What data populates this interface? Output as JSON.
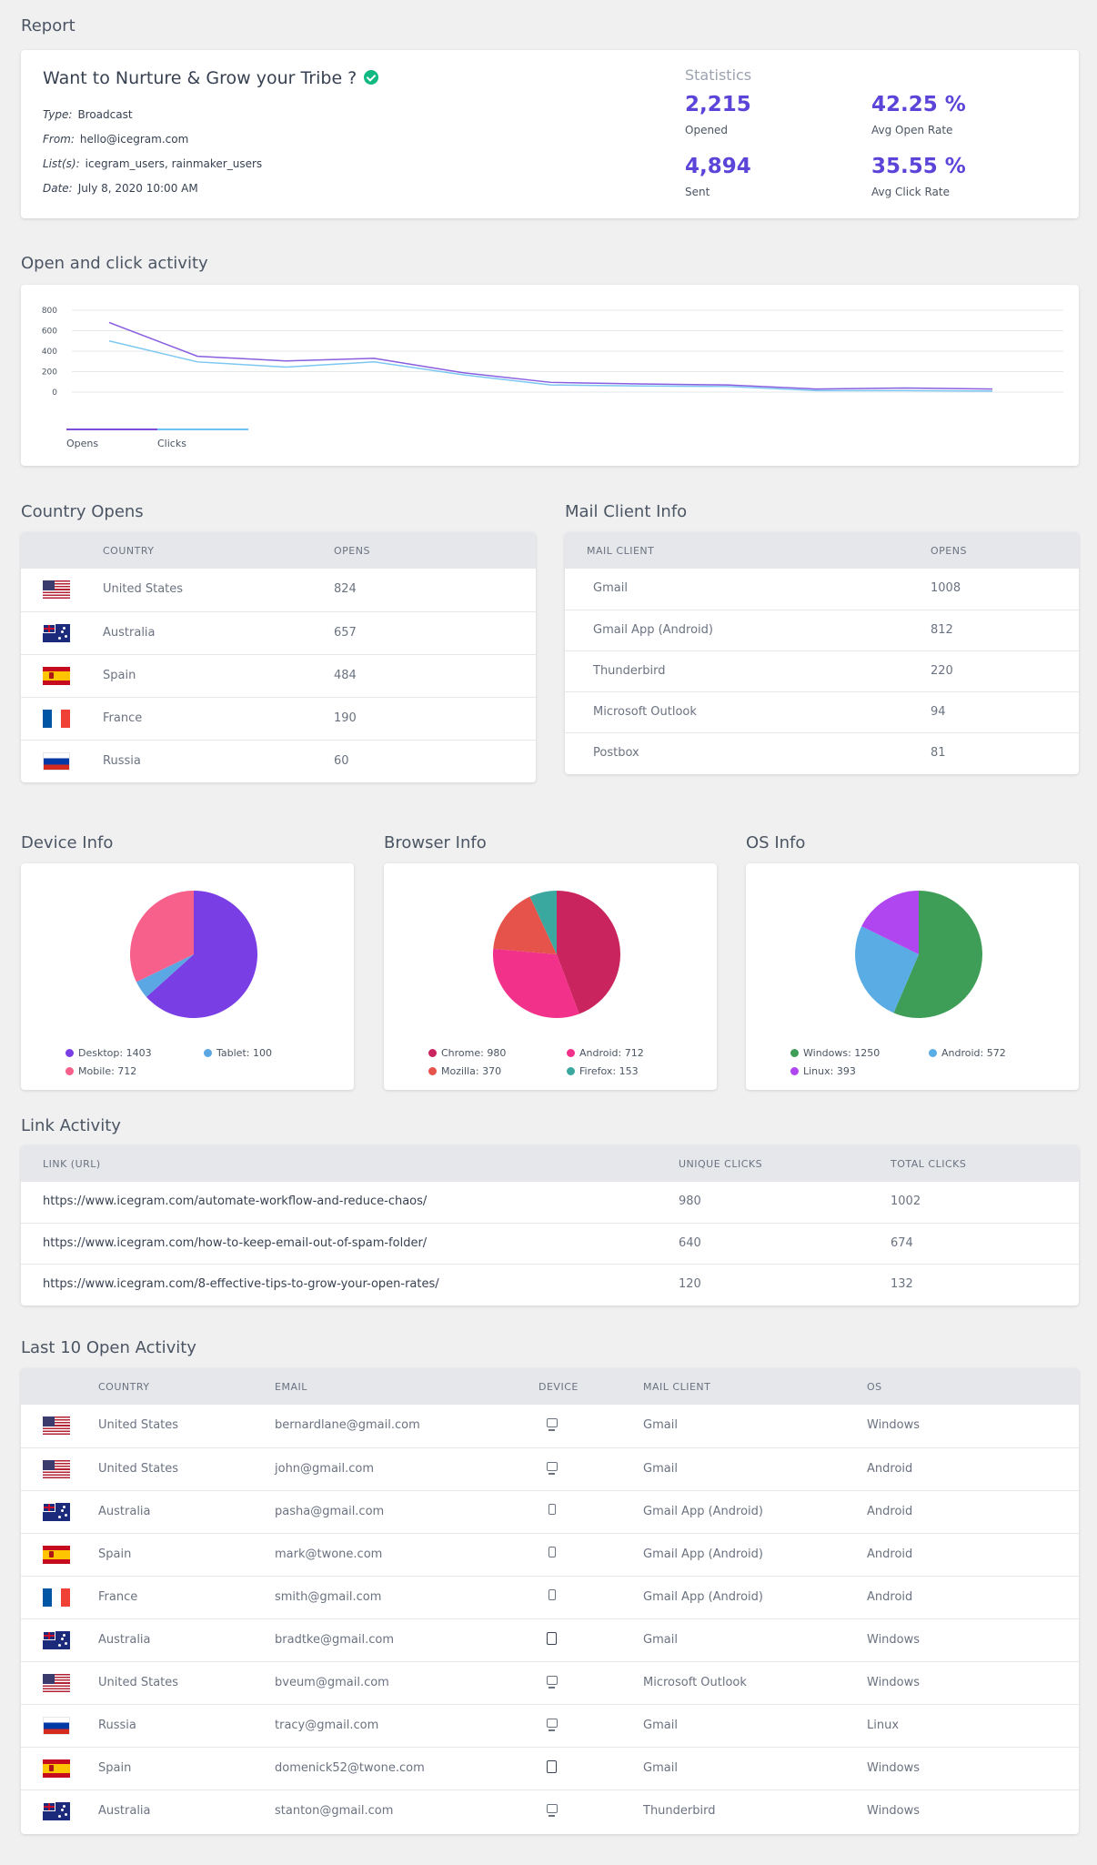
{
  "page": {
    "title": "Report"
  },
  "campaign": {
    "title": "Want to Nurture & Grow your Tribe ?",
    "type_label": "Type:",
    "type": "Broadcast",
    "from_label": "From:",
    "from": "hello@icegram.com",
    "lists_label": "List(s):",
    "lists": "icegram_users, rainmaker_users",
    "date_label": "Date:",
    "date": "July 8, 2020 10:00 AM"
  },
  "statistics": {
    "heading": "Statistics",
    "opened": "2,215",
    "opened_label": "Opened",
    "avg_open_rate": "42.25 %",
    "avg_open_rate_label": "Avg Open Rate",
    "sent": "4,894",
    "sent_label": "Sent",
    "avg_click_rate": "35.55 %",
    "avg_click_rate_label": "Avg Click Rate"
  },
  "activity": {
    "title": "Open and click activity",
    "chart_data": {
      "type": "line",
      "x": [
        1,
        2,
        3,
        4,
        5,
        6,
        7,
        8,
        9,
        10,
        11
      ],
      "ylim": [
        0,
        800
      ],
      "yticks": [
        "800",
        "600",
        "400",
        "200",
        "0"
      ],
      "series": [
        {
          "name": "Opens",
          "color": "#7c4ddb",
          "values": [
            680,
            350,
            305,
            330,
            190,
            95,
            80,
            70,
            30,
            40,
            30
          ]
        },
        {
          "name": "Clicks",
          "color": "#6ec1f0",
          "values": [
            500,
            295,
            245,
            295,
            170,
            70,
            60,
            55,
            15,
            15,
            10
          ]
        }
      ],
      "legend_placement": "bottom-left",
      "grid": true
    }
  },
  "country_opens": {
    "title": "Country Opens",
    "headers": [
      "COUNTRY",
      "OPENS"
    ],
    "rows": [
      {
        "flag": "us",
        "country": "United States",
        "opens": "824"
      },
      {
        "flag": "au",
        "country": "Australia",
        "opens": "657"
      },
      {
        "flag": "es",
        "country": "Spain",
        "opens": "484"
      },
      {
        "flag": "fr",
        "country": "France",
        "opens": "190"
      },
      {
        "flag": "ru",
        "country": "Russia",
        "opens": "60"
      }
    ]
  },
  "mail_client": {
    "title": "Mail Client Info",
    "headers": [
      "MAIL CLIENT",
      "OPENS"
    ],
    "rows": [
      {
        "client": "Gmail",
        "opens": "1008"
      },
      {
        "client": "Gmail App (Android)",
        "opens": "812"
      },
      {
        "client": "Thunderbird",
        "opens": "220"
      },
      {
        "client": "Microsoft Outlook",
        "opens": "94"
      },
      {
        "client": "Postbox",
        "opens": "81"
      }
    ]
  },
  "device_info": {
    "title": "Device Info",
    "chart_data": {
      "type": "pie",
      "categories": [
        "Desktop",
        "Tablet",
        "Mobile"
      ],
      "values": [
        1403,
        100,
        712
      ],
      "colors": [
        "#7a3fe4",
        "#5ba7e3",
        "#f6608a"
      ]
    },
    "legend": [
      "Desktop: 1403",
      "Tablet: 100",
      "Mobile: 712"
    ]
  },
  "browser_info": {
    "title": "Browser Info",
    "chart_data": {
      "type": "pie",
      "categories": [
        "Chrome",
        "Android",
        "Mozilla",
        "Firefox"
      ],
      "values": [
        980,
        712,
        370,
        153
      ],
      "colors": [
        "#c9245e",
        "#f1318a",
        "#e5534b",
        "#3aa89f"
      ]
    },
    "legend": [
      "Chrome: 980",
      "Android: 712",
      "Mozilla: 370",
      "Firefox: 153"
    ]
  },
  "os_info": {
    "title": "OS Info",
    "chart_data": {
      "type": "pie",
      "categories": [
        "Windows",
        "Android",
        "Linux"
      ],
      "values": [
        1250,
        572,
        393
      ],
      "colors": [
        "#3e9d56",
        "#5aace4",
        "#b046f0"
      ]
    },
    "legend": [
      "Windows: 1250",
      "Android: 572",
      "Linux: 393"
    ]
  },
  "link_activity": {
    "title": "Link Activity",
    "headers": [
      "LINK (URL)",
      "UNIQUE CLICKS",
      "TOTAL CLICKS"
    ],
    "rows": [
      {
        "url": "https://www.icegram.com/automate-workflow-and-reduce-chaos/",
        "unique": "980",
        "total": "1002"
      },
      {
        "url": "https://www.icegram.com/how-to-keep-email-out-of-spam-folder/",
        "unique": "640",
        "total": "674"
      },
      {
        "url": "https://www.icegram.com/8-effective-tips-to-grow-your-open-rates/",
        "unique": "120",
        "total": "132"
      }
    ]
  },
  "open_activity": {
    "title": "Last 10 Open Activity",
    "headers": [
      "COUNTRY",
      "EMAIL",
      "DEVICE",
      "MAIL CLIENT",
      "OS"
    ],
    "rows": [
      {
        "flag": "us",
        "country": "United States",
        "email": "bernardlane@gmail.com",
        "device": "desktop-icon",
        "client": "Gmail",
        "os": "Windows"
      },
      {
        "flag": "us",
        "country": "United States",
        "email": "john@gmail.com",
        "device": "desktop-icon",
        "client": "Gmail",
        "os": "Android"
      },
      {
        "flag": "au",
        "country": "Australia",
        "email": "pasha@gmail.com",
        "device": "mobile-icon",
        "client": "Gmail App (Android)",
        "os": "Android"
      },
      {
        "flag": "es",
        "country": "Spain",
        "email": "mark@twone.com",
        "device": "mobile-icon",
        "client": "Gmail App (Android)",
        "os": "Android"
      },
      {
        "flag": "fr",
        "country": "France",
        "email": "smith@gmail.com",
        "device": "mobile-icon",
        "client": "Gmail App (Android)",
        "os": "Android"
      },
      {
        "flag": "au",
        "country": "Australia",
        "email": "bradtke@gmail.com",
        "device": "tablet-icon",
        "client": "Gmail",
        "os": "Windows"
      },
      {
        "flag": "us",
        "country": "United States",
        "email": "bveum@gmail.com",
        "device": "desktop-icon",
        "client": "Microsoft Outlook",
        "os": "Windows"
      },
      {
        "flag": "ru",
        "country": "Russia",
        "email": "tracy@gmail.com",
        "device": "desktop-icon",
        "client": "Gmail",
        "os": "Linux"
      },
      {
        "flag": "es",
        "country": "Spain",
        "email": "domenick52@twone.com",
        "device": "tablet-icon",
        "client": "Gmail",
        "os": "Windows"
      },
      {
        "flag": "au",
        "country": "Australia",
        "email": "stanton@gmail.com",
        "device": "desktop-icon",
        "client": "Thunderbird",
        "os": "Windows"
      }
    ]
  }
}
